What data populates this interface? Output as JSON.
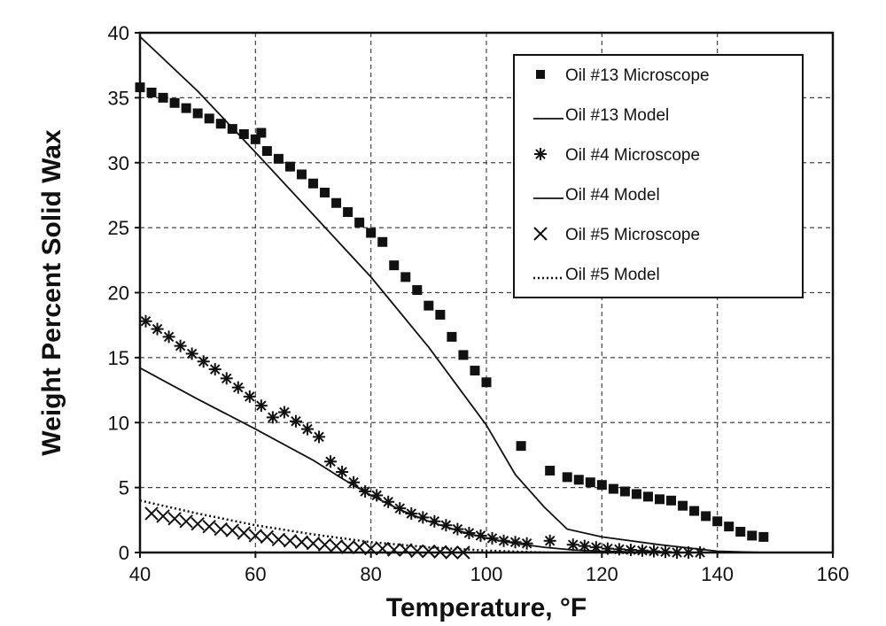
{
  "chart_data": {
    "type": "scatter",
    "xlabel": "Temperature, °F",
    "ylabel": "Weight Percent Solid Wax",
    "xlim": [
      40,
      160
    ],
    "ylim": [
      0,
      40
    ],
    "xticks": [
      40,
      60,
      80,
      100,
      120,
      140,
      160
    ],
    "yticks": [
      0,
      5,
      10,
      15,
      20,
      25,
      30,
      35,
      40
    ],
    "grid": true,
    "legend_position": "top-right",
    "series": [
      {
        "name": "Oil #13 Microscope",
        "kind": "points",
        "marker": "square",
        "x": [
          40,
          42,
          44,
          46,
          48,
          50,
          52,
          54,
          56,
          58,
          60,
          61,
          62,
          64,
          66,
          68,
          70,
          72,
          74,
          76,
          78,
          80,
          82,
          84,
          86,
          88,
          90,
          92,
          94,
          96,
          98,
          100,
          106,
          111,
          114,
          116,
          118,
          120,
          122,
          124,
          126,
          128,
          130,
          132,
          134,
          136,
          138,
          140,
          142,
          144,
          146,
          148
        ],
        "y": [
          35.8,
          35.4,
          35.0,
          34.6,
          34.2,
          33.8,
          33.4,
          33.0,
          32.6,
          32.2,
          31.8,
          32.3,
          30.9,
          30.3,
          29.7,
          29.1,
          28.4,
          27.7,
          26.9,
          26.2,
          25.4,
          24.6,
          23.9,
          22.1,
          21.2,
          20.2,
          19.0,
          18.3,
          16.6,
          15.2,
          14.0,
          13.1,
          8.2,
          6.3,
          5.8,
          5.6,
          5.4,
          5.2,
          4.9,
          4.7,
          4.5,
          4.3,
          4.1,
          4.0,
          3.6,
          3.2,
          2.8,
          2.4,
          2.0,
          1.6,
          1.3,
          1.2
        ]
      },
      {
        "name": "Oil #13 Model",
        "kind": "line",
        "style": "solid",
        "x": [
          40,
          50,
          60,
          70,
          80,
          90,
          100,
          105,
          110,
          114,
          120,
          130,
          140,
          148
        ],
        "y": [
          39.7,
          35.5,
          30.8,
          26.0,
          21.2,
          15.8,
          9.8,
          6.0,
          3.5,
          1.8,
          1.2,
          0.6,
          0.1,
          0.0
        ]
      },
      {
        "name": "Oil #4 Microscope",
        "kind": "points",
        "marker": "asterisk",
        "x": [
          41,
          43,
          45,
          47,
          49,
          51,
          53,
          55,
          57,
          59,
          61,
          63,
          65,
          67,
          69,
          71,
          73,
          75,
          77,
          79,
          81,
          83,
          85,
          87,
          89,
          91,
          93,
          95,
          97,
          99,
          101,
          103,
          105,
          107,
          111,
          115,
          117,
          119,
          121,
          123,
          125,
          127,
          129,
          131,
          133,
          135,
          137
        ],
        "y": [
          17.8,
          17.2,
          16.6,
          15.9,
          15.3,
          14.7,
          14.1,
          13.4,
          12.7,
          12.0,
          11.3,
          10.4,
          10.8,
          10.1,
          9.5,
          8.9,
          7.0,
          6.2,
          5.4,
          4.7,
          4.4,
          3.9,
          3.4,
          3.0,
          2.7,
          2.4,
          2.1,
          1.8,
          1.5,
          1.3,
          1.1,
          0.9,
          0.8,
          0.7,
          0.9,
          0.6,
          0.5,
          0.4,
          0.3,
          0.25,
          0.2,
          0.15,
          0.1,
          0.05,
          0.0,
          0.0,
          0.0
        ]
      },
      {
        "name": "Oil #4 Model",
        "kind": "line",
        "style": "solid",
        "x": [
          40,
          50,
          60,
          70,
          75,
          80,
          85,
          90,
          95,
          100,
          105,
          110,
          115,
          120,
          125,
          130
        ],
        "y": [
          14.2,
          11.8,
          9.5,
          7.1,
          5.7,
          4.4,
          3.3,
          2.4,
          1.7,
          1.1,
          0.7,
          0.4,
          0.2,
          0.1,
          0.05,
          0.0
        ]
      },
      {
        "name": "Oil #5 Microscope",
        "kind": "points",
        "marker": "x",
        "x": [
          42,
          44,
          46,
          48,
          50,
          52,
          54,
          56,
          58,
          60,
          62,
          64,
          66,
          68,
          70,
          72,
          74,
          76,
          78,
          80,
          82,
          84,
          86,
          88,
          90,
          92,
          94,
          96
        ],
        "y": [
          3.0,
          2.8,
          2.6,
          2.4,
          2.2,
          2.0,
          1.8,
          1.7,
          1.5,
          1.3,
          1.2,
          1.0,
          0.9,
          0.8,
          0.7,
          0.6,
          0.5,
          0.4,
          0.4,
          0.3,
          0.3,
          0.2,
          0.2,
          0.1,
          0.1,
          0.05,
          0.0,
          0.0
        ]
      },
      {
        "name": "Oil #5 Model",
        "kind": "line",
        "style": "dotted",
        "x": [
          40,
          50,
          60,
          70,
          80,
          90,
          100,
          110
        ],
        "y": [
          4.0,
          3.0,
          2.1,
          1.4,
          0.8,
          0.4,
          0.15,
          0.0
        ]
      }
    ]
  }
}
